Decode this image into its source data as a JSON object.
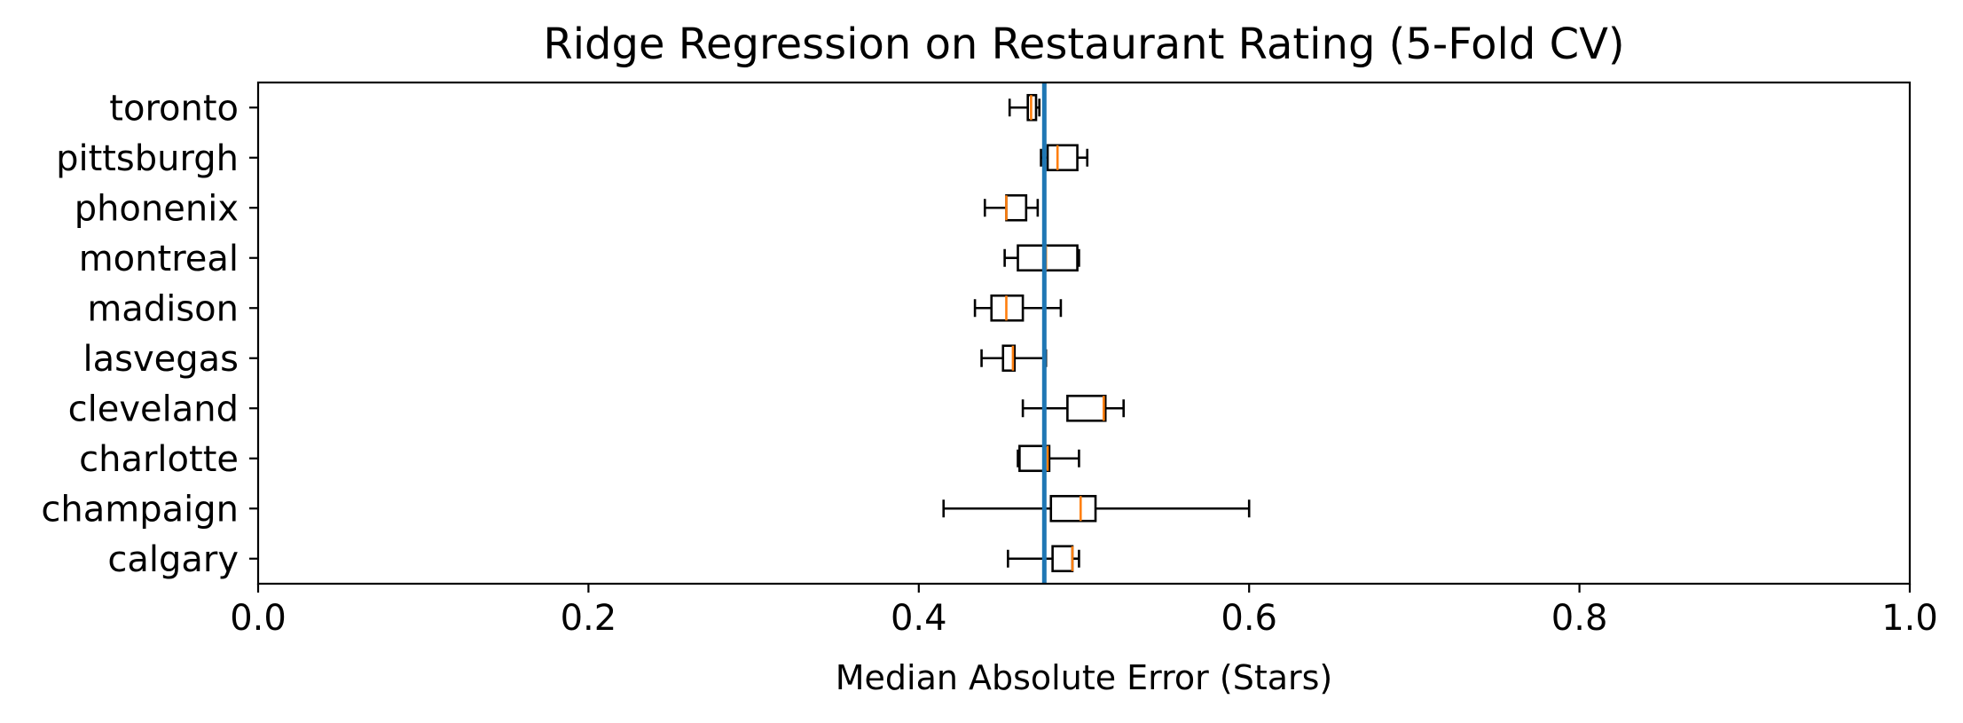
{
  "chart_data": {
    "type": "boxplot",
    "orientation": "horizontal",
    "title": "Ridge Regression on Restaurant Rating (5-Fold CV)",
    "xlabel": "Median Absolute Error (Stars)",
    "ylabel": "",
    "xlim": [
      0,
      1
    ],
    "x_ticks": [
      0.0,
      0.2,
      0.4,
      0.6,
      0.8,
      1.0
    ],
    "x_tick_labels": [
      "0.0",
      "0.2",
      "0.4",
      "0.6",
      "0.8",
      "1.0"
    ],
    "grid": false,
    "reference_line": {
      "value": 0.476,
      "color": "#1f77b4"
    },
    "colors": {
      "box": "#000000",
      "median": "#ff7f0e",
      "reference": "#1f77b4"
    },
    "categories": [
      "toronto",
      "pittsburgh",
      "phonenix",
      "montreal",
      "madison",
      "lasvegas",
      "cleveland",
      "charlotte",
      "champaign",
      "calgary"
    ],
    "boxes": [
      {
        "label": "toronto",
        "whisker_low": 0.455,
        "q1": 0.466,
        "median": 0.468,
        "q3": 0.471,
        "whisker_high": 0.473
      },
      {
        "label": "pittsburgh",
        "whisker_low": 0.474,
        "q1": 0.478,
        "median": 0.484,
        "q3": 0.496,
        "whisker_high": 0.502
      },
      {
        "label": "phonenix",
        "whisker_low": 0.44,
        "q1": 0.453,
        "median": 0.453,
        "q3": 0.465,
        "whisker_high": 0.472
      },
      {
        "label": "montreal",
        "whisker_low": 0.452,
        "q1": 0.46,
        "median": 0.477,
        "q3": 0.496,
        "whisker_high": 0.497
      },
      {
        "label": "madison",
        "whisker_low": 0.434,
        "q1": 0.444,
        "median": 0.453,
        "q3": 0.463,
        "whisker_high": 0.486
      },
      {
        "label": "lasvegas",
        "whisker_low": 0.438,
        "q1": 0.451,
        "median": 0.457,
        "q3": 0.458,
        "whisker_high": 0.477
      },
      {
        "label": "cleveland",
        "whisker_low": 0.463,
        "q1": 0.49,
        "median": 0.512,
        "q3": 0.513,
        "whisker_high": 0.524
      },
      {
        "label": "charlotte",
        "whisker_low": 0.46,
        "q1": 0.461,
        "median": 0.478,
        "q3": 0.479,
        "whisker_high": 0.497
      },
      {
        "label": "champaign",
        "whisker_low": 0.415,
        "q1": 0.48,
        "median": 0.498,
        "q3": 0.507,
        "whisker_high": 0.6
      },
      {
        "label": "calgary",
        "whisker_low": 0.454,
        "q1": 0.481,
        "median": 0.493,
        "q3": 0.493,
        "whisker_high": 0.497
      }
    ]
  }
}
